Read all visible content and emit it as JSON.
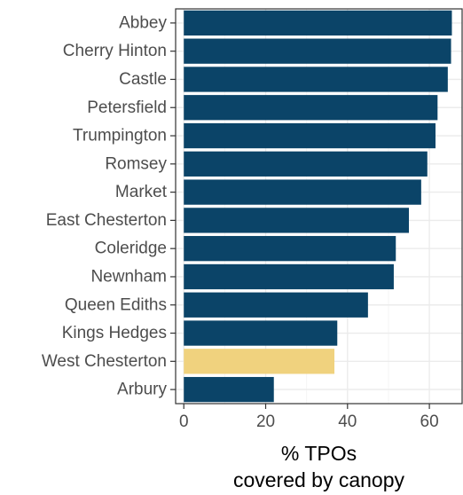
{
  "chart_data": {
    "type": "bar",
    "orientation": "horizontal",
    "categories": [
      "Abbey",
      "Cherry Hinton",
      "Castle",
      "Petersfield",
      "Trumpington",
      "Romsey",
      "Market",
      "East Chesterton",
      "Coleridge",
      "Newnham",
      "Queen Ediths",
      "Kings Hedges",
      "West Chesterton",
      "Arbury"
    ],
    "values": [
      65.5,
      65.3,
      64.5,
      62.0,
      61.5,
      59.5,
      58.0,
      55.0,
      51.8,
      51.3,
      45.0,
      37.5,
      36.8,
      22.0
    ],
    "highlight": "West Chesterton",
    "xlabel_lines": [
      "% TPOs",
      "covered by canopy"
    ],
    "ylabel": "",
    "xlim": [
      -2,
      68
    ],
    "xticks": [
      0,
      20,
      40,
      60
    ],
    "grid": true,
    "colors": {
      "bar": "#0b4468",
      "highlight": "#f0d27e",
      "panel_border": "#333333",
      "grid_major": "#ebebeb",
      "grid_minor": "#f5f5f5",
      "tick_text": "#4d4d4d"
    }
  }
}
